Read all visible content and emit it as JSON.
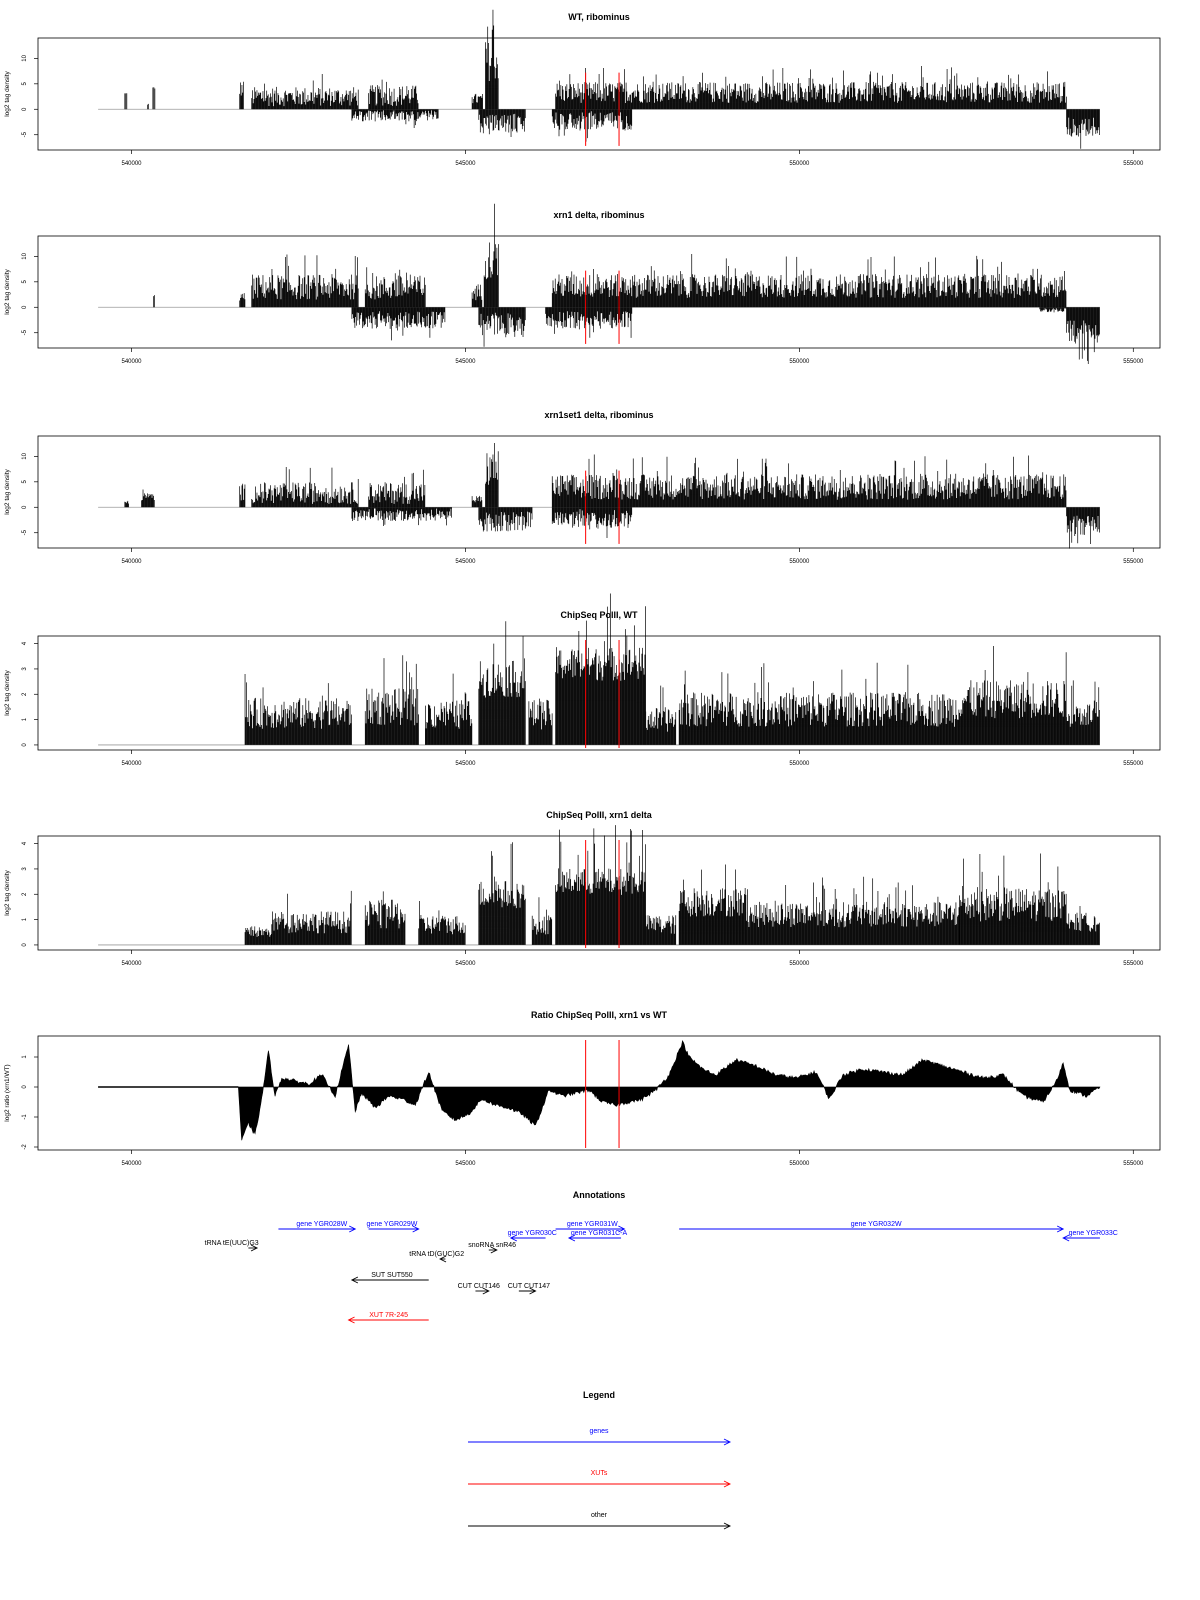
{
  "colors": {
    "gene": "#0000ff",
    "xut": "#ff0000",
    "other": "#000000",
    "marker": "#ff0000",
    "track": "#000000",
    "baseline": "#9a9a9a"
  },
  "chart_data": [
    {
      "type": "bar",
      "id": "wt",
      "title": "WT, ribominus",
      "ylabel": "log2 tag density",
      "xlim": [
        538600,
        555400
      ],
      "ylim": [
        -8,
        14
      ],
      "yticks": [
        -5,
        0,
        5,
        10
      ],
      "xticks": [
        540000,
        545000,
        550000,
        555000
      ],
      "markers": [
        546800,
        547300
      ],
      "series": [
        {
          "strand": "+",
          "segments": [
            {
              "range": [
                539900,
                539930
              ],
              "level": 3.0,
              "spread": 0.1
            },
            {
              "range": [
                540240,
                540260
              ],
              "level": 1.0,
              "spread": 0.1
            },
            {
              "range": [
                540320,
                540350
              ],
              "level": 4.0,
              "spread": 0.1
            },
            {
              "range": [
                541620,
                541680
              ],
              "level": 4.0,
              "spread": 0.3
            },
            {
              "range": [
                541800,
                543400
              ],
              "level": 2.5,
              "spread": 0.55
            },
            {
              "range": [
                543550,
                544300
              ],
              "level": 2.7,
              "spread": 0.55
            },
            {
              "range": [
                545100,
                545260
              ],
              "level": 2.0,
              "spread": 0.4
            },
            {
              "range": [
                545300,
                545500
              ],
              "level": 9.5,
              "spread": 0.3
            },
            {
              "range": [
                546350,
                554000
              ],
              "level": 3.3,
              "spread": 0.45
            }
          ]
        },
        {
          "strand": "-",
          "segments": [
            {
              "range": [
                543300,
                544600
              ],
              "level": 1.3,
              "spread": 0.6
            },
            {
              "range": [
                545200,
                545900
              ],
              "level": 2.8,
              "spread": 0.5
            },
            {
              "range": [
                546300,
                547500
              ],
              "level": 2.2,
              "spread": 0.6
            },
            {
              "range": [
                554000,
                554500
              ],
              "level": 3.5,
              "spread": 0.4
            }
          ]
        }
      ]
    },
    {
      "type": "bar",
      "id": "xrn1",
      "title": "xrn1 delta, ribominus",
      "ylabel": "log2 tag density",
      "xlim": [
        538600,
        555400
      ],
      "ylim": [
        -8,
        14
      ],
      "yticks": [
        -5,
        0,
        5,
        10
      ],
      "xticks": [
        540000,
        545000,
        550000,
        555000
      ],
      "markers": [
        546800,
        547300
      ],
      "series": [
        {
          "strand": "+",
          "segments": [
            {
              "range": [
                540330,
                540350
              ],
              "level": 2.5,
              "spread": 0.1
            },
            {
              "range": [
                541620,
                541700
              ],
              "level": 2.0,
              "spread": 0.3
            },
            {
              "range": [
                541800,
                543400
              ],
              "level": 4.0,
              "spread": 0.45
            },
            {
              "range": [
                543500,
                544400
              ],
              "level": 3.8,
              "spread": 0.45
            },
            {
              "range": [
                545100,
                545250
              ],
              "level": 3.0,
              "spread": 0.4
            },
            {
              "range": [
                545280,
                545500
              ],
              "level": 9.5,
              "spread": 0.3
            },
            {
              "range": [
                546300,
                554000
              ],
              "level": 4.2,
              "spread": 0.4
            }
          ]
        },
        {
          "strand": "-",
          "segments": [
            {
              "range": [
                543300,
                544700
              ],
              "level": 2.5,
              "spread": 0.5
            },
            {
              "range": [
                545200,
                545900
              ],
              "level": 3.5,
              "spread": 0.5
            },
            {
              "range": [
                546200,
                547500
              ],
              "level": 2.5,
              "spread": 0.5
            },
            {
              "range": [
                553600,
                554000
              ],
              "level": 0.6,
              "spread": 0.5
            },
            {
              "range": [
                554000,
                554500
              ],
              "level": 5.0,
              "spread": 0.35
            }
          ]
        }
      ]
    },
    {
      "type": "bar",
      "id": "xrn1set1",
      "title": "xrn1set1 delta, ribominus",
      "ylabel": "log2 tag density",
      "xlim": [
        538600,
        555400
      ],
      "ylim": [
        -8,
        14
      ],
      "yticks": [
        -5,
        0,
        5,
        10
      ],
      "xticks": [
        540000,
        545000,
        550000,
        555000
      ],
      "markers": [
        546800,
        547300
      ],
      "series": [
        {
          "strand": "+",
          "segments": [
            {
              "range": [
                539900,
                539960
              ],
              "level": 1.0,
              "spread": 0.2
            },
            {
              "range": [
                540150,
                540350
              ],
              "level": 2.0,
              "spread": 0.3
            },
            {
              "range": [
                541620,
                541700
              ],
              "level": 3.0,
              "spread": 0.4
            },
            {
              "range": [
                541800,
                543400
              ],
              "level": 2.8,
              "spread": 0.55
            },
            {
              "range": [
                543550,
                544400
              ],
              "level": 2.8,
              "spread": 0.55
            },
            {
              "range": [
                545100,
                545250
              ],
              "level": 1.5,
              "spread": 0.4
            },
            {
              "range": [
                545300,
                545500
              ],
              "level": 7.5,
              "spread": 0.35
            },
            {
              "range": [
                546300,
                554000
              ],
              "level": 4.0,
              "spread": 0.45
            }
          ]
        },
        {
          "strand": "-",
          "segments": [
            {
              "range": [
                543300,
                544800
              ],
              "level": 1.5,
              "spread": 0.6
            },
            {
              "range": [
                545200,
                546000
              ],
              "level": 2.8,
              "spread": 0.5
            },
            {
              "range": [
                546300,
                547500
              ],
              "level": 2.2,
              "spread": 0.6
            },
            {
              "range": [
                554000,
                554500
              ],
              "level": 3.5,
              "spread": 0.4
            }
          ]
        }
      ]
    },
    {
      "type": "bar",
      "id": "chip_wt",
      "title": "ChipSeq PolII, WT",
      "ylabel": "log2 tag density",
      "xlim": [
        538600,
        555400
      ],
      "ylim": [
        -0.2,
        4.3
      ],
      "yticks": [
        0,
        1,
        2,
        3,
        4
      ],
      "xticks": [
        540000,
        545000,
        550000,
        555000
      ],
      "markers": [
        546800,
        547300
      ],
      "series": [
        {
          "strand": "+",
          "segments": [
            {
              "range": [
                541700,
                543300
              ],
              "level": 1.25,
              "spread": 0.35
            },
            {
              "range": [
                543500,
                544300
              ],
              "level": 1.5,
              "spread": 0.35
            },
            {
              "range": [
                544400,
                545100
              ],
              "level": 1.2,
              "spread": 0.35
            },
            {
              "range": [
                545200,
                545900
              ],
              "level": 2.6,
              "spread": 0.2
            },
            {
              "range": [
                545950,
                546300
              ],
              "level": 1.2,
              "spread": 0.35
            },
            {
              "range": [
                546350,
                547700
              ],
              "level": 3.2,
              "spread": 0.15
            },
            {
              "range": [
                547700,
                548150
              ],
              "level": 1.0,
              "spread": 0.35
            },
            {
              "range": [
                548200,
                552400
              ],
              "level": 1.4,
              "spread": 0.35
            },
            {
              "range": [
                552400,
                554000
              ],
              "level": 1.8,
              "spread": 0.3
            },
            {
              "range": [
                554000,
                554500
              ],
              "level": 1.2,
              "spread": 0.3
            }
          ]
        }
      ]
    },
    {
      "type": "bar",
      "id": "chip_xrn1",
      "title": "ChipSeq PolII, xrn1 delta",
      "ylabel": "log2 tag density",
      "xlim": [
        538600,
        555400
      ],
      "ylim": [
        -0.2,
        4.3
      ],
      "yticks": [
        0,
        1,
        2,
        3,
        4
      ],
      "xticks": [
        540000,
        545000,
        550000,
        555000
      ],
      "markers": [
        546800,
        547300
      ],
      "series": [
        {
          "strand": "+",
          "segments": [
            {
              "range": [
                541700,
                542100
              ],
              "level": 0.5,
              "spread": 0.3
            },
            {
              "range": [
                542100,
                543300
              ],
              "level": 0.9,
              "spread": 0.35
            },
            {
              "range": [
                543500,
                544100
              ],
              "level": 1.2,
              "spread": 0.35
            },
            {
              "range": [
                544300,
                545000
              ],
              "level": 0.8,
              "spread": 0.35
            },
            {
              "range": [
                545200,
                545900
              ],
              "level": 2.0,
              "spread": 0.2
            },
            {
              "range": [
                546000,
                546300
              ],
              "level": 0.8,
              "spread": 0.35
            },
            {
              "range": [
                546350,
                547700
              ],
              "level": 2.5,
              "spread": 0.15
            },
            {
              "range": [
                547700,
                548150
              ],
              "level": 0.8,
              "spread": 0.35
            },
            {
              "range": [
                548200,
                549200
              ],
              "level": 1.7,
              "spread": 0.25
            },
            {
              "range": [
                549200,
                552400
              ],
              "level": 1.2,
              "spread": 0.3
            },
            {
              "range": [
                552400,
                554000
              ],
              "level": 1.6,
              "spread": 0.3
            },
            {
              "range": [
                554000,
                554500
              ],
              "level": 0.9,
              "spread": 0.3
            }
          ]
        }
      ]
    },
    {
      "type": "area",
      "id": "ratio",
      "title": "Ratio ChipSeq PolII, xrn1 vs WT",
      "ylabel": "log2 ratio (xrn1/WT)",
      "xlim": [
        538600,
        555400
      ],
      "ylim": [
        -2.1,
        1.7
      ],
      "yticks": [
        -2.0,
        -1.0,
        0.0,
        1.0
      ],
      "xticks": [
        540000,
        545000,
        550000,
        555000
      ],
      "markers": [
        546800,
        547300
      ],
      "x": [
        539500,
        541600,
        541650,
        541750,
        541850,
        541950,
        542050,
        542150,
        542250,
        542450,
        542650,
        542850,
        543050,
        543250,
        543350,
        543450,
        543650,
        543850,
        544050,
        544250,
        544450,
        544650,
        544850,
        545050,
        545250,
        545450,
        545650,
        545850,
        546050,
        546250,
        546450,
        546650,
        546850,
        547050,
        547250,
        547450,
        547650,
        547850,
        548050,
        548250,
        548350,
        548550,
        548750,
        549050,
        549350,
        549650,
        549950,
        550250,
        550450,
        550650,
        550950,
        551250,
        551550,
        551850,
        552150,
        552450,
        552750,
        553050,
        553350,
        553650,
        553850,
        553950,
        554050,
        554300,
        554500
      ],
      "y": [
        0,
        0,
        -1.8,
        -1.2,
        -1.6,
        -0.4,
        1.2,
        -0.3,
        0.3,
        0.2,
        0.1,
        0.4,
        -0.3,
        1.4,
        -0.8,
        -0.2,
        -0.7,
        -0.3,
        -0.4,
        -0.6,
        0.5,
        -0.8,
        -1.1,
        -0.9,
        -0.4,
        -0.6,
        -0.7,
        -0.9,
        -1.3,
        -0.1,
        -0.3,
        -0.2,
        -0.1,
        -0.5,
        -0.6,
        -0.5,
        -0.4,
        -0.1,
        0.4,
        1.5,
        1.0,
        0.6,
        0.4,
        0.9,
        0.7,
        0.4,
        0.3,
        0.5,
        -0.4,
        0.4,
        0.6,
        0.5,
        0.4,
        0.9,
        0.7,
        0.5,
        0.3,
        0.4,
        -0.3,
        -0.5,
        0.2,
        0.8,
        -0.1,
        -0.3,
        0.0
      ]
    }
  ],
  "annotations": {
    "title": "Annotations",
    "items": [
      {
        "label": "gene YGR028W",
        "type": "gene",
        "x1": 542200,
        "x2": 543350,
        "dir": "right",
        "row": 0,
        "lx": 542850,
        "ly_row": 0
      },
      {
        "label": "gene YGR029W",
        "type": "gene",
        "x1": 543550,
        "x2": 544300,
        "dir": "right",
        "row": 0,
        "lx": 543900,
        "ly_row": 0
      },
      {
        "label": "gene YGR030C",
        "type": "gene",
        "x1": 545680,
        "x2": 546200,
        "dir": "left",
        "row": 1,
        "lx": 546000,
        "ly_row": 1
      },
      {
        "label": "gene YGR031W",
        "type": "gene",
        "x1": 546350,
        "x2": 547380,
        "dir": "right",
        "row": 0,
        "lx": 546900,
        "ly_row": 0
      },
      {
        "label": "gene YGR031C-A",
        "type": "gene",
        "x1": 546550,
        "x2": 547330,
        "dir": "left",
        "row": 1,
        "lx": 547000,
        "ly_row": 1
      },
      {
        "label": "gene YGR032W",
        "type": "gene",
        "x1": 548200,
        "x2": 553950,
        "dir": "right",
        "row": 0,
        "lx": 551150,
        "ly_row": 0
      },
      {
        "label": "gene YGR033C",
        "type": "gene",
        "x1": 553950,
        "x2": 554500,
        "dir": "left",
        "row": 1,
        "lx": 554400,
        "ly_row": 1
      },
      {
        "label": "tRNA tE(UUC)G3",
        "type": "other",
        "x1": 541750,
        "x2": 541880,
        "dir": "right",
        "row": 2,
        "lx": 541500,
        "ly_row": 2
      },
      {
        "label": "tRNA tD(GUC)G2",
        "type": "other",
        "x1": 544620,
        "x2": 544700,
        "dir": "left",
        "row": 3,
        "lx": 544570,
        "ly_row": 3
      },
      {
        "label": "snoRNA snR46",
        "type": "other",
        "x1": 545350,
        "x2": 545470,
        "dir": "right",
        "row": 2.5,
        "lx": 545400,
        "ly_row": 2.5
      },
      {
        "label": "SUT SUT550",
        "type": "other",
        "x1": 543300,
        "x2": 544450,
        "dir": "left",
        "row": 4,
        "lx": 543900,
        "ly_row": 4
      },
      {
        "label": "CUT CUT146",
        "type": "other",
        "x1": 545150,
        "x2": 545350,
        "dir": "right",
        "row": 5,
        "lx": 545200,
        "ly_row": 5
      },
      {
        "label": "CUT CUT147",
        "type": "other",
        "x1": 545800,
        "x2": 546050,
        "dir": "right",
        "row": 5,
        "lx": 545950,
        "ly_row": 5
      },
      {
        "label": "XUT 7R-245",
        "type": "xut",
        "x1": 543250,
        "x2": 544450,
        "dir": "left",
        "row": 6,
        "lx": 543850,
        "ly_row": 6
      }
    ]
  },
  "legend": {
    "title": "Legend",
    "items": [
      {
        "label": "genes",
        "type": "gene"
      },
      {
        "label": "XUTs",
        "type": "xut"
      },
      {
        "label": "other",
        "type": "other"
      }
    ]
  }
}
